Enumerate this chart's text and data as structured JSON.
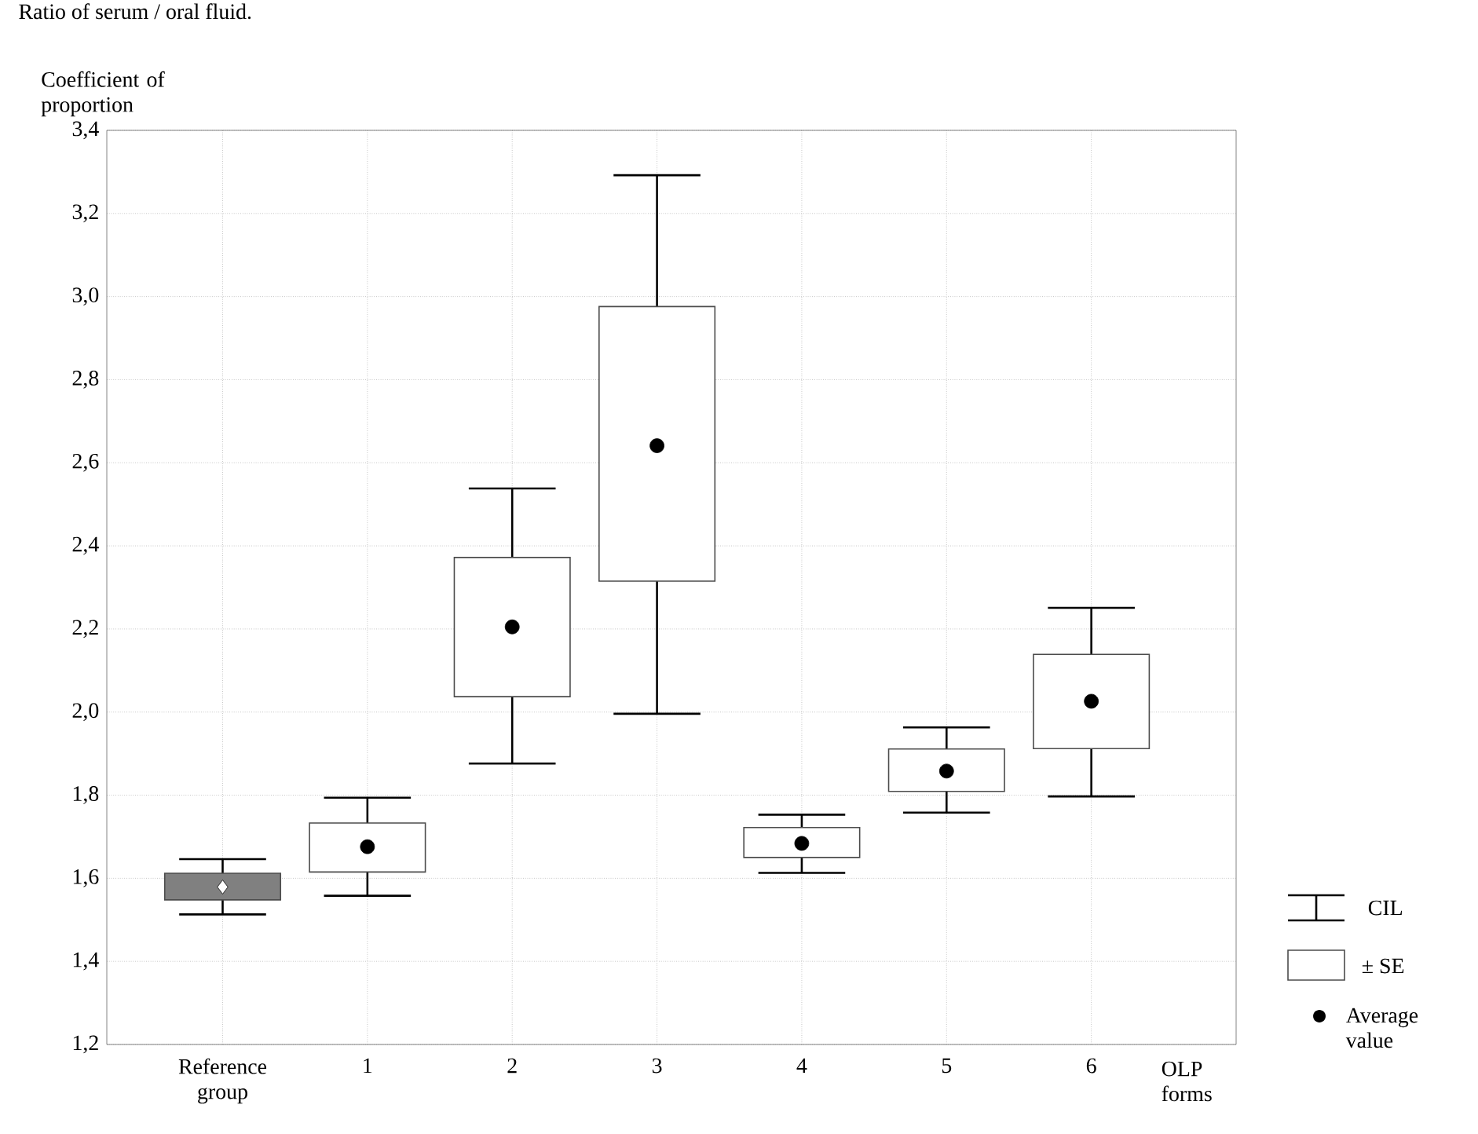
{
  "chart_data": {
    "type": "box",
    "title": "Ratio of serum / oral fluid.",
    "ylabel": "Coefficient of proportion",
    "xlabel": "OLP forms",
    "categories": [
      "Reference group",
      "1",
      "2",
      "3",
      "4",
      "5",
      "6"
    ],
    "series": [
      {
        "color": "#808080",
        "marker": "diamond",
        "boxes": [
          {
            "low": 1.513,
            "q1": 1.548,
            "q3": 1.612,
            "high": 1.646,
            "mean": 1.579
          },
          null,
          null,
          null,
          null,
          null,
          null
        ]
      },
      {
        "color": "#ffffff",
        "marker": "circle",
        "boxes": [
          null,
          {
            "low": 1.558,
            "q1": 1.615,
            "q3": 1.733,
            "high": 1.794,
            "mean": 1.676
          },
          {
            "low": 1.876,
            "q1": 2.037,
            "q3": 2.372,
            "high": 2.538,
            "mean": 2.205
          },
          {
            "low": 1.996,
            "q1": 2.315,
            "q3": 2.976,
            "high": 3.292,
            "mean": 2.641
          },
          {
            "low": 1.613,
            "q1": 1.65,
            "q3": 1.722,
            "high": 1.753,
            "mean": 1.684
          },
          {
            "low": 1.758,
            "q1": 1.809,
            "q3": 1.911,
            "high": 1.963,
            "mean": 1.858
          },
          {
            "low": 1.797,
            "q1": 1.912,
            "q3": 2.139,
            "high": 2.251,
            "mean": 2.026
          }
        ]
      }
    ],
    "ylim": [
      1.2,
      3.4
    ],
    "yticks": [
      {
        "value": 1.2,
        "label": "1,2"
      },
      {
        "value": 1.4,
        "label": "1,4"
      },
      {
        "value": 1.6,
        "label": "1,6"
      },
      {
        "value": 1.8,
        "label": "1,8"
      },
      {
        "value": 2.0,
        "label": "2,0"
      },
      {
        "value": 2.2,
        "label": "2,2"
      },
      {
        "value": 2.4,
        "label": "2,4"
      },
      {
        "value": 2.6,
        "label": "2,6"
      },
      {
        "value": 2.8,
        "label": "2,8"
      },
      {
        "value": 3.0,
        "label": "3,0"
      },
      {
        "value": 3.2,
        "label": "3,2"
      },
      {
        "value": 3.4,
        "label": "3,4"
      }
    ],
    "grid": true,
    "annotations": [
      "CIL",
      "± SE",
      "Average value"
    ]
  }
}
